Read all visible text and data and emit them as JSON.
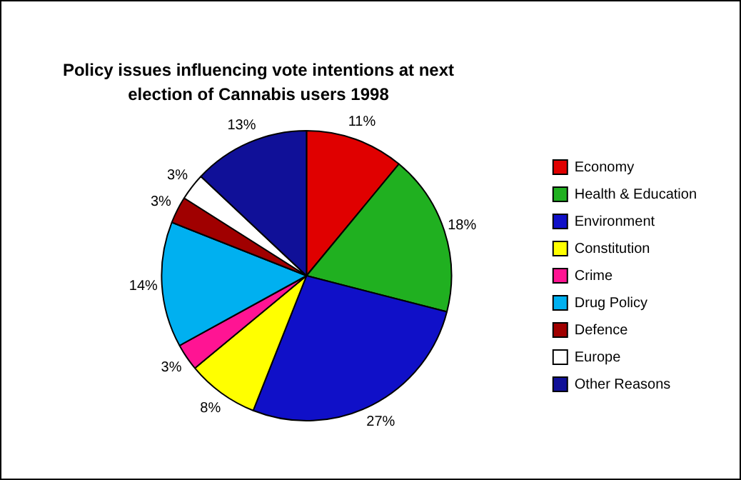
{
  "chart_data": {
    "type": "pie",
    "title": "Policy issues influencing vote intentions at next election of Cannabis users 1998",
    "categories": [
      "Economy",
      "Health & Education",
      "Environment",
      "Constitution",
      "Crime",
      "Drug Policy",
      "Defence",
      "Europe",
      "Other Reasons"
    ],
    "values": [
      11,
      18,
      27,
      8,
      3,
      14,
      3,
      3,
      13
    ],
    "colors": [
      "#e00000",
      "#20b020",
      "#1010c8",
      "#ffff00",
      "#ff1493",
      "#00b0f0",
      "#a00000",
      "#ffffff",
      "#101098"
    ],
    "value_labels": [
      "11%",
      "18%",
      "27%",
      "8%",
      "3%",
      "14%",
      "3%",
      "3%",
      "13%"
    ],
    "legend": "right"
  }
}
